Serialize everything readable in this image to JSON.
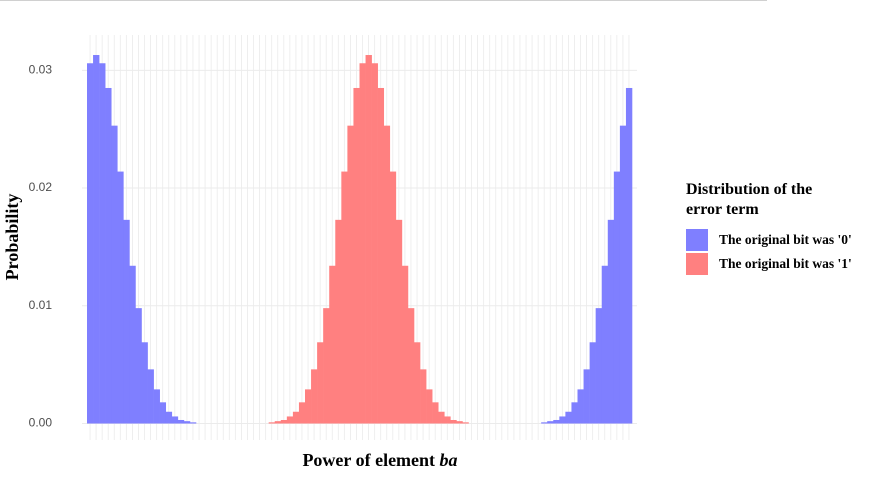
{
  "chart_data": {
    "type": "bar",
    "ylabel": "Probability",
    "xlabel": "Power of element",
    "xlabel_italic": "ba",
    "legend_title": "Distribution of the error term",
    "legend_position": "right",
    "grid": true,
    "ylim": [
      -0.0014,
      0.033
    ],
    "yticks": [
      {
        "value": 0,
        "label": "0.00"
      },
      {
        "value": 0.01,
        "label": "0.01"
      },
      {
        "value": 0.02,
        "label": "0.02"
      },
      {
        "value": 0.03,
        "label": "0.03"
      }
    ],
    "categories": [
      null,
      null,
      null,
      null,
      null,
      null,
      null,
      null,
      null,
      null,
      null,
      null,
      null,
      null,
      null,
      null,
      null,
      null,
      null,
      null,
      null,
      null,
      null,
      null,
      null,
      null,
      null,
      null,
      null,
      null,
      null,
      null,
      null,
      null,
      null,
      null,
      null,
      null,
      null,
      null,
      null,
      null,
      null,
      null,
      null,
      null,
      null,
      null,
      null,
      null,
      null,
      null,
      null,
      null,
      null,
      null,
      null,
      null,
      null,
      null,
      null,
      null,
      null,
      null,
      null,
      null,
      null,
      null,
      null,
      null,
      null,
      null,
      null,
      null,
      null,
      null,
      null,
      null,
      null,
      null,
      null,
      null,
      null,
      null,
      null,
      null,
      null,
      null,
      null,
      null
    ],
    "series": [
      {
        "name": "The original bit was '0'",
        "color": "#7f7fff",
        "values": [
          0.0306,
          0.0313,
          0.0306,
          0.0285,
          0.0253,
          0.0214,
          0.0173,
          0.0134,
          0.0098,
          0.0069,
          0.0046,
          0.0029,
          0.0018,
          0.001,
          0.0006,
          0.0003,
          0.0002,
          0.0001,
          0,
          0,
          0,
          0,
          0,
          0,
          0,
          0,
          0,
          0,
          0,
          0,
          0,
          0,
          0,
          0,
          0,
          0,
          0,
          0,
          0,
          0,
          0,
          0,
          0,
          0,
          0,
          0,
          0,
          0,
          0,
          0,
          0,
          0,
          0,
          0,
          0,
          0,
          0,
          0,
          0,
          0,
          0,
          0,
          0,
          0,
          0,
          0,
          0,
          0,
          0,
          0,
          0,
          0,
          0,
          0,
          0,
          0.0001,
          0.0002,
          0.0003,
          0.0006,
          0.001,
          0.0018,
          0.0029,
          0.0046,
          0.0069,
          0.0098,
          0.0134,
          0.0173,
          0.0214,
          0.0253,
          0.0285
        ]
      },
      {
        "name": "The original bit was '1'",
        "color": "#ff8080",
        "values": [
          0,
          0,
          0,
          0,
          0,
          0,
          0,
          0,
          0,
          0,
          0,
          0,
          0,
          0,
          0,
          0,
          0,
          0,
          0,
          0,
          0,
          0,
          0,
          0,
          0,
          0,
          0,
          0,
          0,
          0,
          0.0001,
          0.0002,
          0.0003,
          0.0006,
          0.001,
          0.0018,
          0.0029,
          0.0046,
          0.0069,
          0.0098,
          0.0134,
          0.0173,
          0.0214,
          0.0253,
          0.0285,
          0.0306,
          0.0313,
          0.0306,
          0.0285,
          0.0253,
          0.0214,
          0.0173,
          0.0134,
          0.0098,
          0.0069,
          0.0046,
          0.0029,
          0.0018,
          0.001,
          0.0006,
          0.0003,
          0.0002,
          0.0001,
          0,
          0,
          0,
          0,
          0,
          0,
          0,
          0,
          0,
          0,
          0,
          0,
          0,
          0,
          0,
          0,
          0,
          0,
          0,
          0,
          0,
          0,
          0,
          0,
          0,
          0,
          0
        ]
      }
    ]
  }
}
